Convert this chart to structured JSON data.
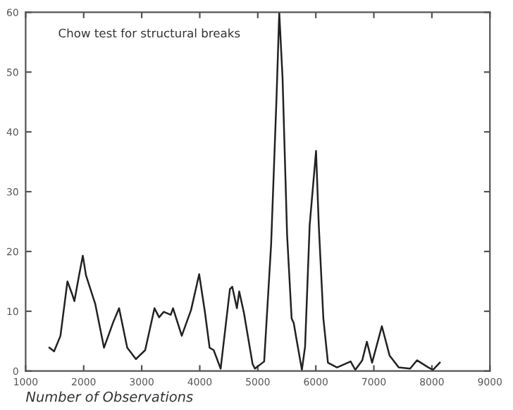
{
  "chart_data": {
    "type": "line",
    "xlabel": "Number of Observations",
    "annotations": [
      "Chow test for structural breaks"
    ],
    "x": [
      1410,
      1490,
      1600,
      1720,
      1800,
      1840,
      1920,
      1985,
      2040,
      2200,
      2350,
      2510,
      2610,
      2750,
      2900,
      3060,
      3220,
      3300,
      3380,
      3500,
      3540,
      3690,
      3850,
      3990,
      4090,
      4170,
      4240,
      4360,
      4520,
      4560,
      4640,
      4680,
      4760,
      4910,
      4950,
      5110,
      5230,
      5324,
      5370,
      5427,
      5505,
      5583,
      5620,
      5660,
      5760,
      5815,
      5894,
      6004,
      6051,
      6130,
      6209,
      6366,
      6600,
      6680,
      6800,
      6880,
      6970,
      7138,
      7271,
      7428,
      7625,
      7743,
      7940,
      8018,
      8136
    ],
    "series": [
      {
        "color": "#222222",
        "values": [
          3.9,
          3.3,
          5.9,
          15,
          12.9,
          11.7,
          16,
          19.3,
          16,
          11.2,
          3.9,
          8.2,
          10.5,
          3.9,
          2,
          3.5,
          10.5,
          9,
          9.9,
          9.4,
          10.5,
          5.9,
          10.2,
          16.2,
          9.8,
          3.9,
          3.5,
          0.4,
          13.7,
          14.1,
          10.5,
          13.3,
          9.8,
          1.2,
          0.4,
          1.6,
          21.2,
          46,
          60,
          49,
          22.8,
          8.8,
          8,
          5.7,
          0.2,
          4.1,
          24.4,
          36.8,
          24.4,
          8.8,
          1.4,
          0.6,
          1.6,
          0.2,
          1.8,
          4.9,
          1.4,
          7.5,
          2.6,
          0.6,
          0.4,
          1.8,
          0.6,
          0.2,
          1.4
        ]
      }
    ],
    "xlim": [
      1000,
      9000
    ],
    "xticks": [
      1000,
      2000,
      3000,
      4000,
      5000,
      6000,
      7000,
      8000,
      9000
    ],
    "ylim": [
      0,
      60
    ],
    "yticks": [
      0,
      10,
      20,
      30,
      40,
      50,
      60
    ],
    "grid": false,
    "legend": false,
    "marker": "none",
    "line_style": "solid"
  }
}
